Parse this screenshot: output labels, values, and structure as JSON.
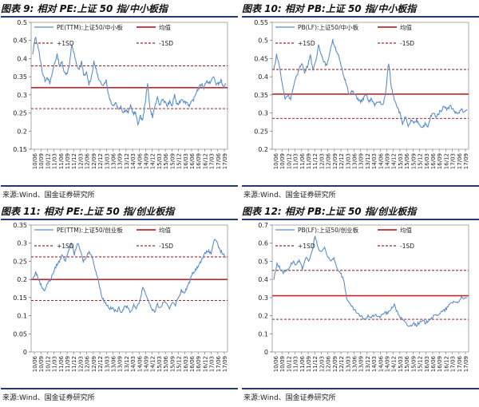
{
  "chart_data": [
    {
      "type": "line",
      "title": "图表 9:  相对 PE:上证 50 指/中小板指",
      "source": "来源:Wind、国金证券研究所",
      "ylim": [
        0.15,
        0.5
      ],
      "yticks": [
        "0.15",
        "0.2",
        "0.25",
        "0.3",
        "0.35",
        "0.4",
        "0.45",
        "0.5"
      ],
      "xticks": [
        "10/06",
        "10/09",
        "10/12",
        "11/03",
        "11/06",
        "11/09",
        "11/12",
        "12/03",
        "12/06",
        "12/09",
        "12/12",
        "13/03",
        "13/06",
        "13/09",
        "13/12",
        "14/03",
        "14/06",
        "14/09",
        "14/12",
        "15/03",
        "15/06",
        "15/09",
        "15/12",
        "16/03",
        "16/06",
        "16/09",
        "16/12",
        "17/03",
        "17/06",
        "17/09"
      ],
      "series": [
        {
          "name": "PE(TTM):上证50/中小板",
          "color": "#5b8fc9",
          "values": [
            0.41,
            0.46,
            0.44,
            0.4,
            0.36,
            0.34,
            0.35,
            0.33,
            0.36,
            0.39,
            0.41,
            0.38,
            0.39,
            0.36,
            0.36,
            0.38,
            0.44,
            0.41,
            0.38,
            0.37,
            0.39,
            0.35,
            0.36,
            0.33,
            0.35,
            0.39,
            0.37,
            0.34,
            0.33,
            0.33,
            0.34,
            0.3,
            0.28,
            0.27,
            0.28,
            0.26,
            0.27,
            0.25,
            0.26,
            0.25,
            0.27,
            0.25,
            0.25,
            0.22,
            0.24,
            0.23,
            0.28,
            0.33,
            0.26,
            0.24,
            0.27,
            0.29,
            0.27,
            0.29,
            0.28,
            0.27,
            0.28,
            0.27,
            0.3,
            0.27,
            0.28,
            0.29,
            0.28,
            0.28,
            0.27,
            0.28,
            0.29,
            0.31,
            0.32,
            0.33,
            0.32,
            0.34,
            0.33,
            0.34,
            0.35,
            0.33,
            0.33,
            0.34,
            0.32,
            0.33
          ]
        },
        {
          "name": "均值",
          "color": "#c0282d",
          "value": 0.32
        },
        {
          "name": "+1SD",
          "color": "#a3262b",
          "value": 0.38
        },
        {
          "name": "-1SD",
          "color": "#a3262b",
          "value": 0.262
        }
      ]
    },
    {
      "type": "line",
      "title": "图表 10:  相对 PB:上证 50 指/中小板指",
      "source": "来源:Wind、国金证券研究所",
      "ylim": [
        0.2,
        0.55
      ],
      "yticks": [
        "0.2",
        "0.25",
        "0.3",
        "0.35",
        "0.4",
        "0.45",
        "0.5",
        "0.55"
      ],
      "xticks": [
        "10/06",
        "10/09",
        "10/12",
        "11/03",
        "11/06",
        "11/09",
        "11/12",
        "12/03",
        "12/06",
        "12/09",
        "12/12",
        "13/03",
        "13/06",
        "13/09",
        "13/12",
        "14/03",
        "14/06",
        "14/09",
        "14/12",
        "15/03",
        "15/06",
        "15/09",
        "15/12",
        "16/03",
        "16/06",
        "16/09",
        "16/12",
        "17/03",
        "17/06",
        "17/09"
      ],
      "series": [
        {
          "name": "PB(LF):上证50/中小板",
          "color": "#5b8fc9",
          "values": [
            0.42,
            0.46,
            0.43,
            0.38,
            0.34,
            0.35,
            0.34,
            0.37,
            0.4,
            0.42,
            0.44,
            0.41,
            0.43,
            0.46,
            0.42,
            0.44,
            0.49,
            0.46,
            0.44,
            0.43,
            0.47,
            0.5,
            0.48,
            0.46,
            0.43,
            0.4,
            0.38,
            0.35,
            0.36,
            0.35,
            0.34,
            0.33,
            0.34,
            0.35,
            0.33,
            0.34,
            0.32,
            0.33,
            0.33,
            0.32,
            0.36,
            0.44,
            0.37,
            0.34,
            0.32,
            0.3,
            0.27,
            0.29,
            0.26,
            0.28,
            0.27,
            0.28,
            0.27,
            0.26,
            0.27,
            0.26,
            0.29,
            0.3,
            0.29,
            0.3,
            0.31,
            0.32,
            0.31,
            0.32,
            0.31,
            0.3,
            0.3,
            0.31,
            0.3,
            0.31
          ]
        },
        {
          "name": "均值",
          "color": "#c0282d",
          "value": 0.352
        },
        {
          "name": "+1SD",
          "color": "#a3262b",
          "value": 0.42
        },
        {
          "name": "-1SD",
          "color": "#a3262b",
          "value": 0.285
        }
      ]
    },
    {
      "type": "line",
      "title": "图表 11:  相对 PE:上证 50 指/创业板指",
      "source": "来源:Wind、国金证券研究所",
      "ylim": [
        0,
        0.35
      ],
      "yticks": [
        "0",
        "0.05",
        "0.1",
        "0.15",
        "0.2",
        "0.25",
        "0.3",
        "0.35"
      ],
      "xticks": [
        "10/06",
        "10/09",
        "10/12",
        "11/03",
        "11/06",
        "11/09",
        "11/12",
        "12/03",
        "12/06",
        "12/09",
        "12/12",
        "13/03",
        "13/06",
        "13/09",
        "13/12",
        "14/03",
        "14/06",
        "14/09",
        "14/12",
        "15/03",
        "15/06",
        "15/09",
        "15/12",
        "16/03",
        "16/06",
        "16/09",
        "16/12",
        "17/03",
        "17/06",
        "17/09"
      ],
      "series": [
        {
          "name": "PE(TTM):上证50/创业板",
          "color": "#5b8fc9",
          "values": [
            0.2,
            0.22,
            0.2,
            0.18,
            0.17,
            0.19,
            0.2,
            0.22,
            0.24,
            0.25,
            0.27,
            0.25,
            0.28,
            0.3,
            0.27,
            0.3,
            0.28,
            0.25,
            0.26,
            0.28,
            0.26,
            0.23,
            0.2,
            0.16,
            0.14,
            0.13,
            0.12,
            0.12,
            0.11,
            0.12,
            0.11,
            0.13,
            0.12,
            0.11,
            0.13,
            0.12,
            0.14,
            0.18,
            0.16,
            0.14,
            0.12,
            0.11,
            0.13,
            0.12,
            0.14,
            0.13,
            0.12,
            0.14,
            0.13,
            0.15,
            0.17,
            0.16,
            0.18,
            0.2,
            0.22,
            0.23,
            0.24,
            0.26,
            0.27,
            0.28,
            0.27,
            0.31,
            0.3,
            0.28,
            0.27,
            0.26
          ]
        },
        {
          "name": "均值",
          "color": "#c0282d",
          "value": 0.2
        },
        {
          "name": "+1SD",
          "color": "#a3262b",
          "value": 0.262
        },
        {
          "name": "-1SD",
          "color": "#a3262b",
          "value": 0.142
        }
      ]
    },
    {
      "type": "line",
      "title": "图表 12:  相对 PB:上证 50 指/创业板指",
      "source": "来源:Wind、国金证券研究所",
      "ylim": [
        0,
        0.7
      ],
      "yticks": [
        "0",
        "0.1",
        "0.2",
        "0.3",
        "0.4",
        "0.5",
        "0.6",
        "0.7"
      ],
      "xticks": [
        "10/06",
        "10/09",
        "10/12",
        "11/03",
        "11/06",
        "11/09",
        "11/12",
        "12/03",
        "12/06",
        "12/09",
        "12/12",
        "13/03",
        "13/06",
        "13/09",
        "13/12",
        "14/03",
        "14/06",
        "14/09",
        "14/12",
        "15/03",
        "15/06",
        "15/09",
        "15/12",
        "16/03",
        "16/06",
        "16/09",
        "16/12",
        "17/03",
        "17/06",
        "17/09"
      ],
      "series": [
        {
          "name": "PB(LF):上证50/创业板",
          "color": "#5b8fc9",
          "values": [
            0.4,
            0.49,
            0.46,
            0.44,
            0.45,
            0.47,
            0.5,
            0.48,
            0.5,
            0.46,
            0.52,
            0.5,
            0.55,
            0.64,
            0.57,
            0.55,
            0.58,
            0.52,
            0.5,
            0.52,
            0.46,
            0.44,
            0.4,
            0.3,
            0.26,
            0.24,
            0.22,
            0.2,
            0.19,
            0.18,
            0.2,
            0.19,
            0.21,
            0.19,
            0.2,
            0.22,
            0.21,
            0.24,
            0.26,
            0.22,
            0.19,
            0.17,
            0.15,
            0.14,
            0.16,
            0.15,
            0.16,
            0.17,
            0.16,
            0.18,
            0.19,
            0.2,
            0.21,
            0.22,
            0.23,
            0.25,
            0.27,
            0.28,
            0.27,
            0.3,
            0.29,
            0.3
          ]
        },
        {
          "name": "均值",
          "color": "#c0282d",
          "value": 0.31
        },
        {
          "name": "+1SD",
          "color": "#a3262b",
          "value": 0.45
        },
        {
          "name": "-1SD",
          "color": "#a3262b",
          "value": 0.18
        }
      ]
    }
  ]
}
